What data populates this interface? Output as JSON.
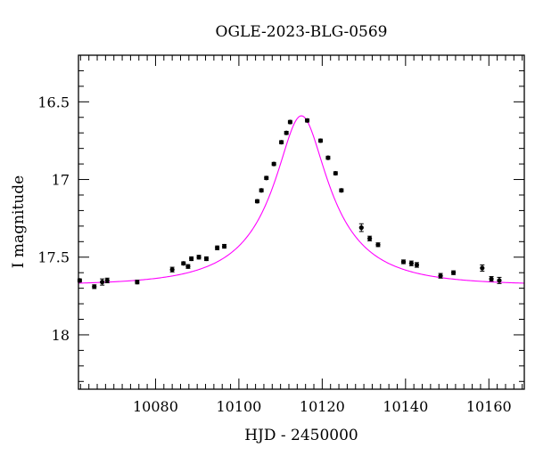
{
  "chart_data": {
    "type": "scatter",
    "title": "OGLE-2023-BLG-0569",
    "xlabel": "HJD - 2450000",
    "ylabel": "I magnitude",
    "xlim": [
      10061.5,
      10168.5
    ],
    "ylim": [
      18.35,
      16.2
    ],
    "y_inverted": true,
    "x_major_ticks": [
      10080,
      10100,
      10120,
      10140,
      10160
    ],
    "x_tick_labels": [
      "10080",
      "10100",
      "10120",
      "10140",
      "10160"
    ],
    "x_minor_step": 2,
    "y_major_ticks": [
      16.5,
      17,
      17.5,
      18
    ],
    "y_tick_labels": [
      "16.5",
      "17",
      "17.5",
      "18"
    ],
    "y_minor_step": 0.1,
    "grid": false,
    "model_color": "#ff00ff",
    "point_color": "#000000",
    "model": {
      "t0": 10115.0,
      "peak_mag": 16.59,
      "base_mag": 17.68,
      "tE": 21.0,
      "u0": 0.3
    },
    "points": [
      {
        "x": 10061.8,
        "y": 17.65,
        "err": 0.01
      },
      {
        "x": 10065.3,
        "y": 17.69,
        "err": 0.012
      },
      {
        "x": 10067.2,
        "y": 17.66,
        "err": 0.02
      },
      {
        "x": 10068.4,
        "y": 17.65,
        "err": 0.015
      },
      {
        "x": 10075.6,
        "y": 17.66,
        "err": 0.012
      },
      {
        "x": 10084.0,
        "y": 17.58,
        "err": 0.015
      },
      {
        "x": 10086.7,
        "y": 17.54,
        "err": 0.01
      },
      {
        "x": 10087.8,
        "y": 17.56,
        "err": 0.012
      },
      {
        "x": 10088.6,
        "y": 17.51,
        "err": 0.012
      },
      {
        "x": 10090.4,
        "y": 17.5,
        "err": 0.012
      },
      {
        "x": 10092.2,
        "y": 17.51,
        "err": 0.012
      },
      {
        "x": 10094.8,
        "y": 17.44,
        "err": 0.012
      },
      {
        "x": 10096.5,
        "y": 17.43,
        "err": 0.012
      },
      {
        "x": 10104.4,
        "y": 17.14,
        "err": 0.01
      },
      {
        "x": 10105.4,
        "y": 17.07,
        "err": 0.01
      },
      {
        "x": 10106.6,
        "y": 16.99,
        "err": 0.01
      },
      {
        "x": 10108.4,
        "y": 16.9,
        "err": 0.01
      },
      {
        "x": 10110.2,
        "y": 16.76,
        "err": 0.01
      },
      {
        "x": 10111.4,
        "y": 16.7,
        "err": 0.01
      },
      {
        "x": 10112.3,
        "y": 16.63,
        "err": 0.01
      },
      {
        "x": 10116.4,
        "y": 16.62,
        "err": 0.01
      },
      {
        "x": 10119.6,
        "y": 16.75,
        "err": 0.01
      },
      {
        "x": 10121.4,
        "y": 16.86,
        "err": 0.01
      },
      {
        "x": 10123.2,
        "y": 16.96,
        "err": 0.01
      },
      {
        "x": 10124.6,
        "y": 17.07,
        "err": 0.01
      },
      {
        "x": 10129.4,
        "y": 17.31,
        "err": 0.025
      },
      {
        "x": 10131.4,
        "y": 17.38,
        "err": 0.015
      },
      {
        "x": 10133.4,
        "y": 17.42,
        "err": 0.012
      },
      {
        "x": 10139.5,
        "y": 17.53,
        "err": 0.012
      },
      {
        "x": 10141.4,
        "y": 17.54,
        "err": 0.015
      },
      {
        "x": 10142.7,
        "y": 17.55,
        "err": 0.015
      },
      {
        "x": 10148.4,
        "y": 17.62,
        "err": 0.015
      },
      {
        "x": 10151.5,
        "y": 17.6,
        "err": 0.012
      },
      {
        "x": 10158.4,
        "y": 17.57,
        "err": 0.02
      },
      {
        "x": 10160.6,
        "y": 17.64,
        "err": 0.015
      },
      {
        "x": 10162.5,
        "y": 17.65,
        "err": 0.02
      }
    ]
  }
}
